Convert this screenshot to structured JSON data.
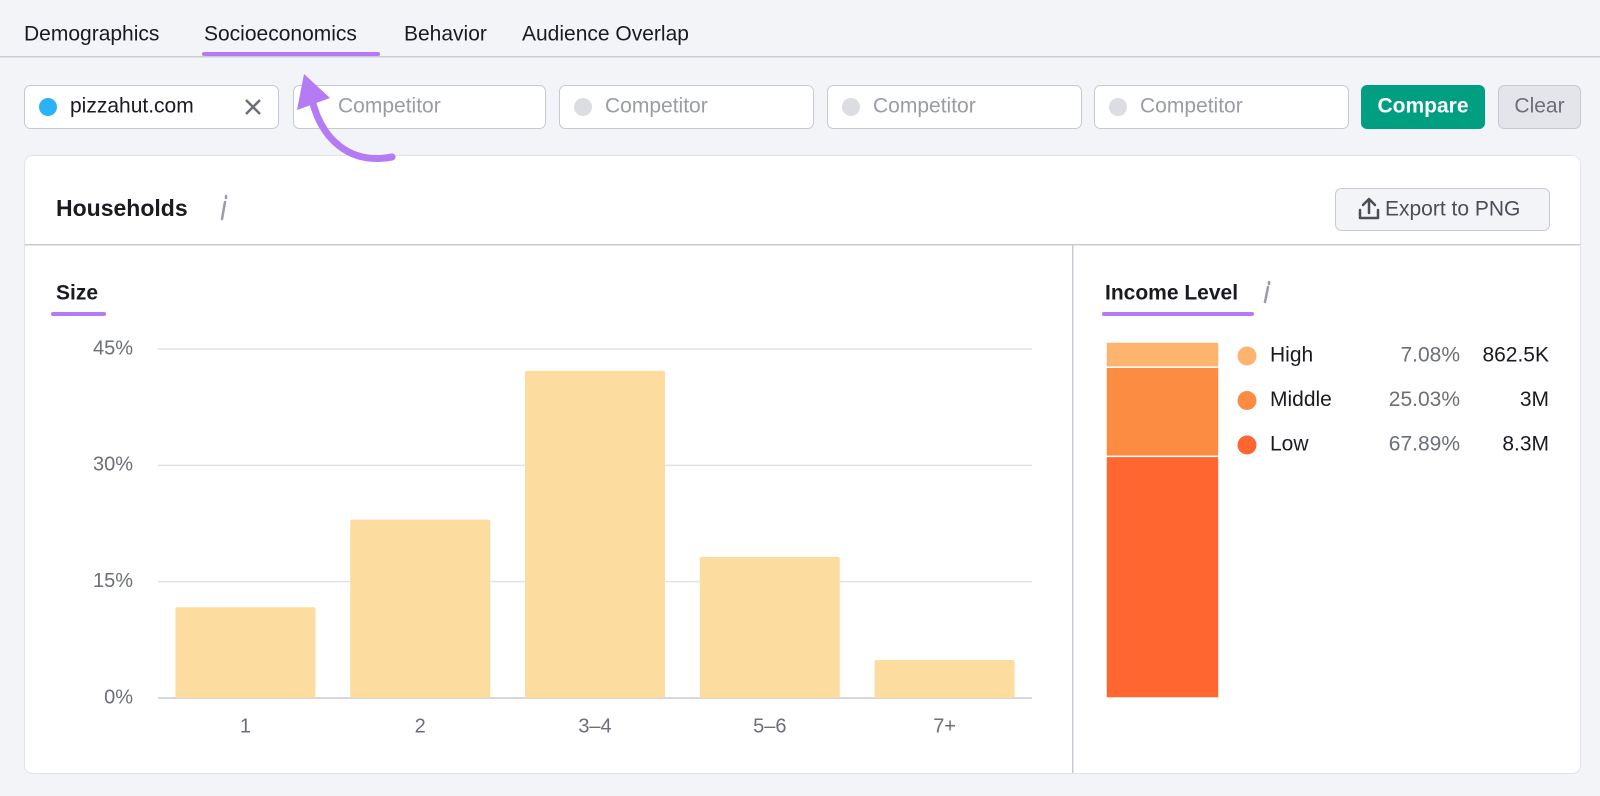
{
  "tabs": [
    "Demographics",
    "Socioeconomics",
    "Behavior",
    "Audience Overlap"
  ],
  "domain_input": "pizzahut.com",
  "competitor_placeholders": [
    "Competitor",
    "Competitor",
    "Competitor",
    "Competitor"
  ],
  "buttons": {
    "compare": "Compare",
    "clear": "Clear"
  },
  "panel": {
    "title": "Households",
    "export": "Export to PNG"
  },
  "chart_data": [
    {
      "type": "bar",
      "title": "Size",
      "categories": [
        "1",
        "2",
        "3–4",
        "5–6",
        "7+"
      ],
      "values": [
        11.7,
        23.0,
        42.2,
        18.2,
        4.9
      ],
      "color": "#fddca0",
      "ylim": [
        0,
        45
      ],
      "yticks": [
        {
          "value": 0,
          "label": "0%"
        },
        {
          "value": 15,
          "label": "15%"
        },
        {
          "value": 30,
          "label": "30%"
        },
        {
          "value": 45,
          "label": "45%"
        }
      ],
      "grid": true
    },
    {
      "type": "stacked-bar",
      "title": "Income Level",
      "ylim": [
        0,
        100
      ],
      "series": [
        {
          "name": "High",
          "color": "#fdb46f",
          "values": [
            7.08
          ],
          "value_labels": [
            "7.08%"
          ],
          "counts": [
            "862.5K"
          ]
        },
        {
          "name": "Middle",
          "color": "#fd8c43",
          "values": [
            25.03
          ],
          "value_labels": [
            "25.03%"
          ],
          "counts": [
            "3M"
          ]
        },
        {
          "name": "Low",
          "color": "#ff6630",
          "values": [
            67.89
          ],
          "value_labels": [
            "67.89%"
          ],
          "counts": [
            "8.3M"
          ]
        }
      ]
    }
  ]
}
